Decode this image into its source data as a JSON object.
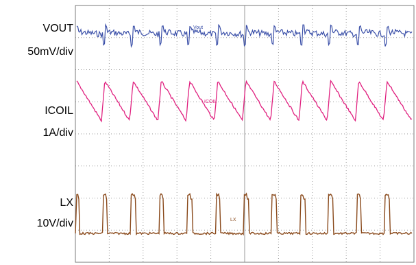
{
  "labels": {
    "vout_name": "VOUT",
    "vout_scale": "50mV/div",
    "icoil_name": "ICOIL",
    "icoil_scale": "1A/div",
    "lx_name": "LX",
    "lx_scale": "10V/div"
  },
  "colors": {
    "vout": "#3a4fa8",
    "icoil": "#e0207f",
    "lx": "#8a4a1c",
    "grid": "#9a9a9a",
    "frame": "#7a7a7a"
  },
  "chart_data": {
    "type": "line",
    "title": "",
    "xlabel": "",
    "ylabel": "",
    "grid": true,
    "divisions": {
      "x": 10,
      "y": 8
    },
    "cycles_on_screen": 12,
    "series": [
      {
        "name": "VOUT",
        "scale": "50mV/div",
        "shape": "ripple with periodic downward spikes",
        "marker_text": "Vout"
      },
      {
        "name": "ICOIL",
        "scale": "1A/div",
        "shape": "sawtooth, fast rise slow fall",
        "marker_text": "ICOIL"
      },
      {
        "name": "LX",
        "scale": "10V/div",
        "shape": "narrow high pulse each cycle",
        "marker_text": "LX"
      }
    ]
  }
}
